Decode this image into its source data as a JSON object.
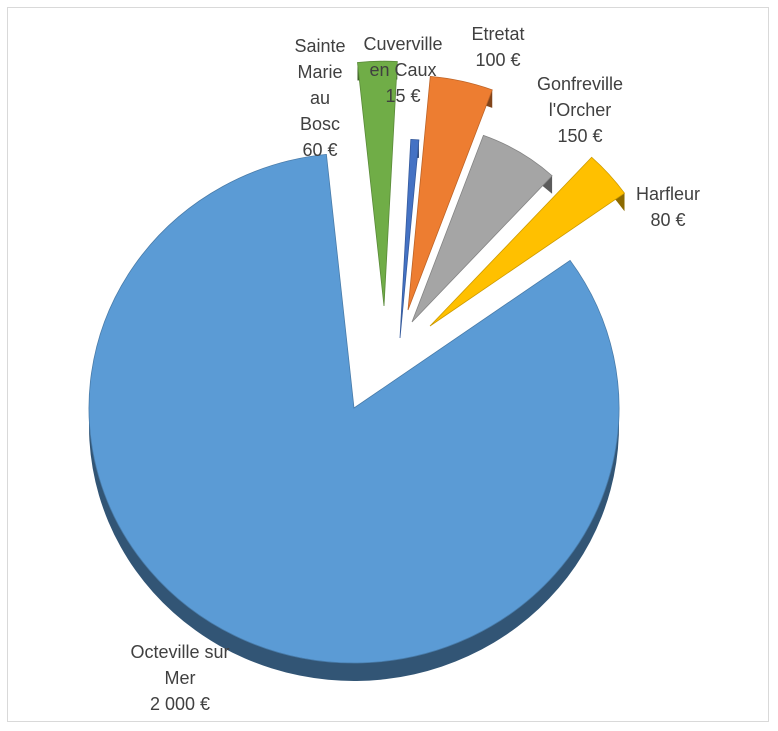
{
  "chart_data": {
    "type": "pie",
    "title": "",
    "legend": "none",
    "slices": [
      {
        "category": "Octeville sur Mer",
        "value": 2000,
        "label_lines": [
          "Octeville sur",
          "Mer",
          "2 000 €"
        ],
        "color": "#5b9bd5"
      },
      {
        "category": "Cuverville en Caux",
        "value": 15,
        "label_lines": [
          "Cuverville",
          "en Caux",
          "15 €"
        ],
        "color": "#4472c4"
      },
      {
        "category": "Etretat",
        "value": 100,
        "label_lines": [
          "Etretat",
          "100 €"
        ],
        "color": "#ed7d31"
      },
      {
        "category": "Gonfreville l'Orcher",
        "value": 150,
        "label_lines": [
          "Gonfreville",
          "l'Orcher",
          "150 €"
        ],
        "color": "#a5a5a5"
      },
      {
        "category": "Harfleur",
        "value": 80,
        "label_lines": [
          "Harfleur",
          "80 €"
        ],
        "color": "#ffc000"
      },
      {
        "category": "Sainte Marie au Bosc",
        "value": 60,
        "label_lines": [
          "Sainte",
          "Marie",
          "au",
          "Bosc",
          "60 €"
        ],
        "color": "#70ad47"
      }
    ]
  }
}
